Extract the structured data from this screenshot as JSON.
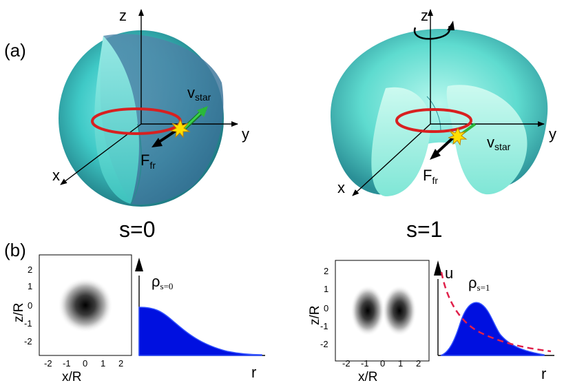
{
  "panel_labels": {
    "a": "(a)",
    "b": "(b)"
  },
  "axis_labels": {
    "z": "z",
    "y": "y",
    "x": "x",
    "v_main": "v",
    "v_sub": "star",
    "f_main": "F",
    "f_sub": "fr"
  },
  "states": {
    "s0": "s=0",
    "s1": "s=1"
  },
  "density_plot": {
    "ylabel": "z/R",
    "xlabel": "x/R",
    "y_ticks": [
      "2",
      "1",
      "0",
      "-1",
      "-2"
    ],
    "x_ticks": [
      "-2",
      "-1",
      "0",
      "1",
      "2"
    ]
  },
  "profile_plot": {
    "rho_main": "ρ",
    "rho_s0_sub": "s=0",
    "rho_s1_sub": "s=1",
    "r_label": "r",
    "u_label": "u"
  },
  "colors": {
    "surface": "#3ecfcf",
    "orbit": "#d82020",
    "profile_fill": "#0010e0",
    "potential": "#e0204a"
  }
}
